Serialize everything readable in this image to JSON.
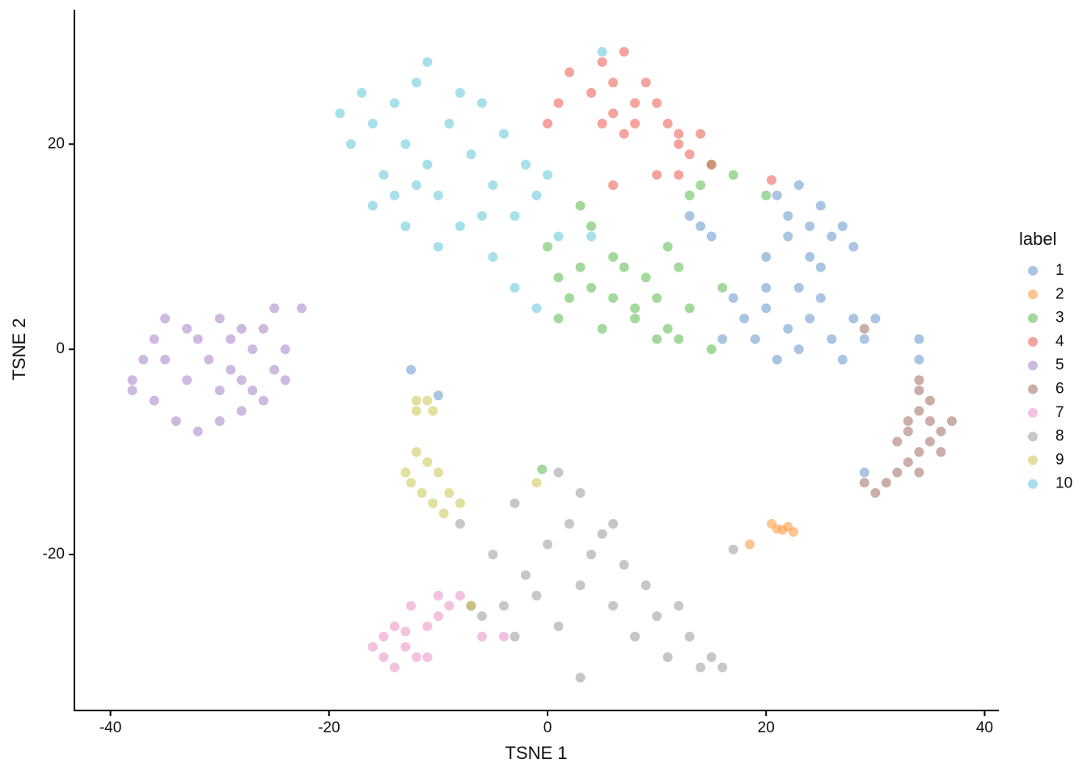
{
  "chart_data": {
    "type": "scatter",
    "x_label": "TSNE 1",
    "y_label": "TSNE 2",
    "legend_title": "label",
    "legend_position": "right",
    "grid": false,
    "xlim": [
      -43.3,
      41.3
    ],
    "ylim": [
      -35.2,
      33.1
    ],
    "xticks": [
      -40,
      -20,
      0,
      20,
      40
    ],
    "yticks": [
      -20,
      0,
      20
    ],
    "series": [
      {
        "name": "1",
        "color": "#729ece",
        "x": [
          21,
          22,
          23,
          24,
          25,
          26,
          27,
          28,
          24,
          22,
          20,
          17,
          18,
          19,
          20,
          21,
          22,
          23,
          24,
          25,
          26,
          27,
          28,
          29,
          30,
          23,
          20,
          16,
          14,
          15,
          13,
          34,
          34,
          29,
          -10,
          -12.5,
          25
        ],
        "y": [
          15,
          13,
          16,
          12,
          14,
          11,
          12,
          10,
          9,
          11,
          9,
          5,
          3,
          1,
          4,
          -1,
          2,
          0,
          3,
          5,
          1,
          -1,
          3,
          1,
          3,
          6,
          6,
          1,
          12,
          11,
          13,
          1,
          -1,
          -12,
          -4.5,
          -2,
          8
        ]
      },
      {
        "name": "2",
        "color": "#ff9e4a",
        "x": [
          20.5,
          21,
          22,
          22.5,
          21.5,
          18.5
        ],
        "y": [
          -17,
          -17.5,
          -17.3,
          -17.8,
          -17.6,
          -19
        ]
      },
      {
        "name": "3",
        "color": "#67bf5c",
        "x": [
          0,
          1,
          1,
          2,
          3,
          4,
          5,
          6,
          7,
          8,
          9,
          10,
          11,
          12,
          13,
          12,
          10,
          8,
          6,
          4,
          3,
          11,
          14,
          15,
          17,
          13,
          16,
          20,
          15,
          -0.5
        ],
        "y": [
          10,
          7,
          3,
          5,
          8,
          6,
          2,
          5,
          8,
          4,
          7,
          5,
          2,
          8,
          4,
          1,
          1,
          3,
          9,
          12,
          14,
          10,
          16,
          18,
          17,
          15,
          6,
          15,
          0,
          -11.7
        ]
      },
      {
        "name": "4",
        "color": "#ed665d",
        "x": [
          2,
          4,
          5,
          6,
          7,
          8,
          6,
          5,
          7,
          9,
          10,
          11,
          12,
          13,
          14,
          15,
          12,
          10,
          6,
          1,
          0,
          20.5,
          12,
          8
        ],
        "y": [
          27,
          25,
          28,
          26,
          29,
          24,
          23,
          22,
          21,
          26,
          24,
          22,
          20,
          19,
          21,
          18,
          17,
          17,
          16,
          24,
          22,
          16.5,
          21,
          22
        ]
      },
      {
        "name": "5",
        "color": "#ad8bc9",
        "x": [
          -38,
          -36,
          -35,
          -33,
          -31,
          -30,
          -29,
          -28,
          -27,
          -26,
          -25,
          -24,
          -24,
          -26,
          -28,
          -30,
          -32,
          -34,
          -36,
          -37,
          -33,
          -30,
          -35,
          -32,
          -28,
          -25,
          -22.5,
          -29,
          -27,
          -38
        ],
        "y": [
          -3,
          1,
          3,
          2,
          -1,
          3,
          1,
          -3,
          0,
          2,
          -2,
          0,
          -3,
          -5,
          -6,
          -7,
          -8,
          -7,
          -5,
          -1,
          -3,
          -4,
          -1,
          1,
          2,
          4,
          4,
          -2,
          -4,
          -4
        ]
      },
      {
        "name": "6",
        "color": "#a8786e",
        "x": [
          34,
          35,
          34,
          35,
          36,
          33,
          34,
          33,
          32,
          31,
          30,
          29,
          35,
          37,
          36,
          33,
          29,
          34,
          32,
          34
        ],
        "y": [
          -4,
          -5,
          -6,
          -7,
          -8,
          -8,
          -10,
          -11,
          -12,
          -13,
          -14,
          -13,
          -9,
          -7,
          -10,
          -7,
          2,
          -3,
          -9,
          -12
        ]
      },
      {
        "name": "7",
        "color": "#ed97ca",
        "x": [
          -16,
          -15,
          -14,
          -15,
          -14,
          -13,
          -12,
          -13,
          -11,
          -10,
          -9,
          -8,
          -7,
          -6,
          -4,
          -12.5,
          -10,
          -11
        ],
        "y": [
          -29,
          -30,
          -31,
          -28,
          -27,
          -29,
          -30,
          -27.5,
          -27,
          -26,
          -25,
          -24,
          -25,
          -28,
          -28,
          -25,
          -24,
          -30
        ]
      },
      {
        "name": "8",
        "color": "#a2a2a2",
        "x": [
          -5,
          -4,
          -3,
          -2,
          -1,
          0,
          1,
          2,
          3,
          4,
          5,
          6,
          7,
          8,
          9,
          10,
          11,
          12,
          13,
          14,
          15,
          16,
          3,
          1,
          -3,
          -6,
          -7,
          3,
          6,
          17,
          -8
        ],
        "y": [
          -20,
          -25,
          -28,
          -22,
          -24,
          -19,
          -27,
          -17,
          -23,
          -20,
          -18,
          -25,
          -21,
          -28,
          -23,
          -26,
          -30,
          -25,
          -28,
          -31,
          -30,
          -31,
          -14,
          -12,
          -15,
          -26,
          -25,
          -32,
          -17,
          -19.5,
          -17
        ]
      },
      {
        "name": "9",
        "color": "#cdcc5d",
        "x": [
          -13,
          -12,
          -12.5,
          -11,
          -11.5,
          -10,
          -10.5,
          -9,
          -9.5,
          -8,
          -11,
          -12,
          -12,
          -10.5,
          -1,
          -7
        ],
        "y": [
          -12,
          -10,
          -13,
          -11,
          -14,
          -12,
          -15,
          -14,
          -16,
          -15,
          -5,
          -5,
          -6,
          -6,
          -13,
          -25
        ]
      },
      {
        "name": "10",
        "color": "#6dccda",
        "x": [
          -19,
          -18,
          -17,
          -16,
          -15,
          -14,
          -13,
          -12,
          -11,
          -10,
          -9,
          -8,
          -7,
          -6,
          -5,
          -4,
          -3,
          -2,
          -1,
          -16,
          -13,
          -10,
          -8,
          -11,
          -5,
          -3,
          -1,
          1,
          4,
          5,
          -14,
          -12,
          -6,
          0
        ],
        "y": [
          23,
          20,
          25,
          22,
          17,
          24,
          20,
          26,
          18,
          15,
          22,
          25,
          19,
          24,
          16,
          21,
          13,
          18,
          15,
          14,
          12,
          10,
          12,
          28,
          9,
          6,
          4,
          11,
          11,
          29,
          15,
          16,
          13,
          17
        ]
      }
    ]
  }
}
